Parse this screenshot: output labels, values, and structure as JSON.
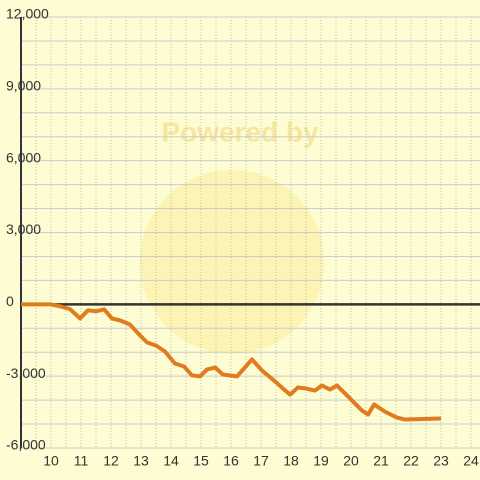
{
  "chart_data": {
    "type": "line",
    "watermark": "Powered by",
    "x": [
      9,
      9.97,
      10.3,
      10.63,
      10.97,
      11.23,
      11.5,
      11.77,
      12.03,
      12.3,
      12.63,
      12.9,
      13.2,
      13.5,
      13.8,
      14.13,
      14.43,
      14.7,
      14.97,
      15.2,
      15.47,
      15.73,
      16.2,
      16.7,
      17.03,
      17.47,
      17.77,
      17.97,
      18.23,
      18.47,
      18.8,
      19.03,
      19.3,
      19.53,
      19.8,
      20.13,
      20.37,
      20.57,
      20.77,
      21.13,
      21.53,
      21.8,
      23
    ],
    "series": [
      {
        "color": "#e07b20",
        "values": [
          0,
          0,
          -80,
          -200,
          -590,
          -250,
          -290,
          -210,
          -590,
          -670,
          -840,
          -1210,
          -1590,
          -1720,
          -1970,
          -2470,
          -2590,
          -2970,
          -3010,
          -2720,
          -2640,
          -2930,
          -3010,
          -2300,
          -2760,
          -3220,
          -3560,
          -3770,
          -3470,
          -3510,
          -3600,
          -3390,
          -3560,
          -3390,
          -3720,
          -4140,
          -4440,
          -4600,
          -4180,
          -4480,
          -4730,
          -4810,
          -4770
        ]
      }
    ],
    "xlim": [
      9,
      24.3
    ],
    "ylim": [
      -6000,
      12000
    ],
    "xticks": [
      10,
      11,
      12,
      13,
      14,
      15,
      16,
      17,
      18,
      19,
      20,
      21,
      22,
      23,
      24
    ],
    "yticks": [
      {
        "value": -6000,
        "label": "-6,000"
      },
      {
        "value": -3000,
        "label": "-3,000"
      },
      0,
      {
        "value": 3000,
        "label": "3,000"
      },
      {
        "value": 6000,
        "label": "6,000"
      },
      {
        "value": 9000,
        "label": "9,000"
      },
      {
        "value": 12000,
        "label": "12,000"
      }
    ],
    "xgrid": [
      9.5,
      10,
      10.5,
      11,
      11.5,
      12,
      12.5,
      13,
      13.5,
      14,
      14.5,
      15,
      15.5,
      16,
      16.5,
      17,
      17.5,
      18,
      18.5,
      19,
      19.5,
      20,
      20.5,
      21,
      21.5,
      22,
      22.5,
      23,
      23.5,
      24
    ],
    "ygrid": [
      -5000,
      -4000,
      -2000,
      -1000,
      1000,
      2000,
      4000,
      5000,
      7000,
      8000,
      10000,
      11000
    ],
    "grid": true
  }
}
